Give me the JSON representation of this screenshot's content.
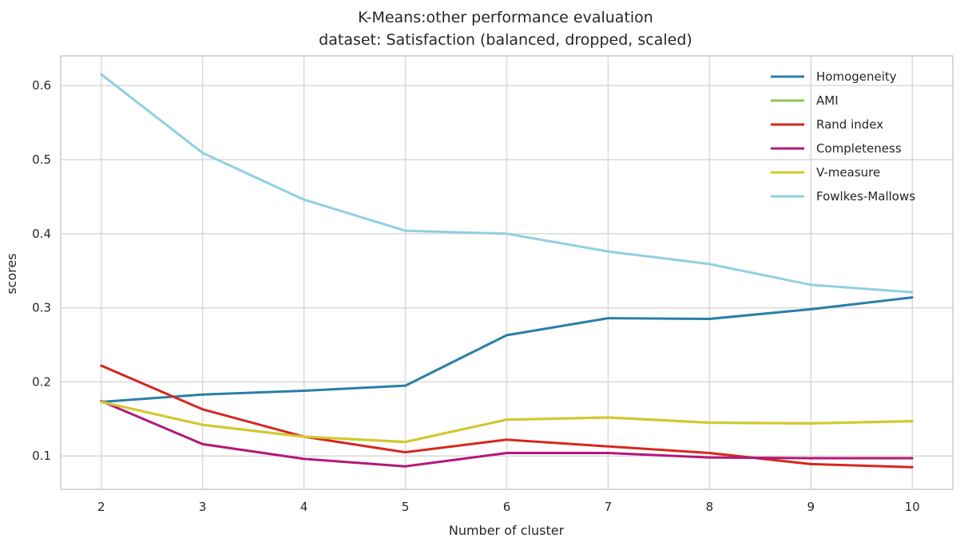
{
  "chart_data": {
    "type": "line",
    "title": "K-Means:other performance evaluation",
    "subtitle": "dataset: Satisfaction (balanced, dropped, scaled)",
    "xlabel": "Number of cluster",
    "ylabel": "scores",
    "x": [
      2,
      3,
      4,
      5,
      6,
      7,
      8,
      9,
      10
    ],
    "xlim": [
      1.6,
      10.4
    ],
    "ylim": [
      0.055,
      0.64
    ],
    "xticks": [
      2,
      3,
      4,
      5,
      6,
      7,
      8,
      9,
      10
    ],
    "yticks": [
      0.1,
      0.2,
      0.3,
      0.4,
      0.5,
      0.6
    ],
    "ytick_labels": [
      "0.1",
      "0.2",
      "0.3",
      "0.4",
      "0.5",
      "0.6"
    ],
    "grid": true,
    "legend_position": "top-right",
    "series": [
      {
        "name": "Homogeneity",
        "color": "#2a7fa8",
        "values": [
          0.173,
          0.183,
          0.188,
          0.195,
          0.263,
          0.286,
          0.285,
          0.298,
          0.314
        ]
      },
      {
        "name": "AMI",
        "color": "#8fc25b",
        "values": [
          0.173,
          0.142,
          0.126,
          0.119,
          0.149,
          0.152,
          0.145,
          0.144,
          0.147
        ]
      },
      {
        "name": "Rand index",
        "color": "#d6271e",
        "values": [
          0.222,
          0.163,
          0.126,
          0.105,
          0.122,
          0.113,
          0.104,
          0.089,
          0.085
        ]
      },
      {
        "name": "Completeness",
        "color": "#b3187a",
        "values": [
          0.174,
          0.116,
          0.096,
          0.086,
          0.104,
          0.104,
          0.098,
          0.097,
          0.097
        ]
      },
      {
        "name": "V-measure",
        "color": "#d4c82a",
        "values": [
          0.173,
          0.142,
          0.126,
          0.119,
          0.149,
          0.152,
          0.145,
          0.144,
          0.147
        ]
      },
      {
        "name": "Fowlkes-Mallows",
        "color": "#8fd0e0",
        "values": [
          0.615,
          0.509,
          0.446,
          0.404,
          0.4,
          0.376,
          0.359,
          0.331,
          0.321
        ]
      }
    ]
  }
}
